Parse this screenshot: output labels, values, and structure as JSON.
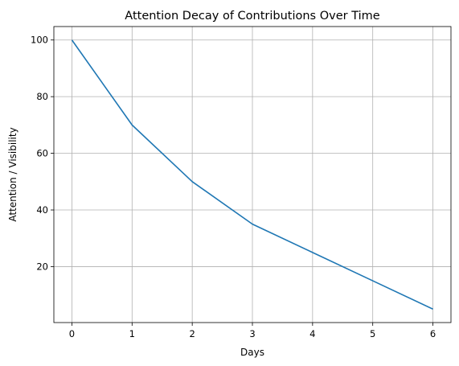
{
  "chart_data": {
    "type": "line",
    "title": "Attention Decay of Contributions Over Time",
    "xlabel": "Days",
    "ylabel": "Attention / Visibility",
    "x": [
      0,
      1,
      2,
      3,
      4,
      5,
      6
    ],
    "series": [
      {
        "values": [
          100,
          70,
          50,
          35,
          25,
          15,
          5
        ],
        "color": "#1f77b4"
      }
    ],
    "xlim": [
      -0.3,
      6.3
    ],
    "ylim": [
      0.25,
      104.75
    ],
    "xticks": [
      0,
      1,
      2,
      3,
      4,
      5,
      6
    ],
    "yticks": [
      20,
      40,
      60,
      80,
      100
    ],
    "grid": true
  }
}
